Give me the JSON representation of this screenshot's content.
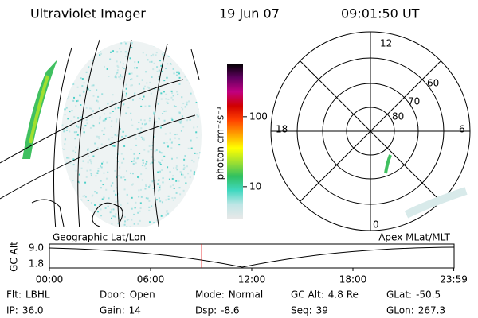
{
  "header": {
    "instrument": "Ultraviolet Imager",
    "date": "19 Jun 07",
    "time": "09:01:50 UT"
  },
  "colorbar": {
    "label": "photon cm⁻²s⁻¹",
    "log": true,
    "lim": [
      3.5,
      575
    ],
    "ticks": [
      100,
      10
    ],
    "colors": [
      "#e8e8e8",
      "#bfe6e6",
      "#40d8c0",
      "#30c060",
      "#a0e030",
      "#ffff00",
      "#ffa000",
      "#ff4000",
      "#d00000",
      "#c00080",
      "#600060",
      "#000000"
    ]
  },
  "polar": {
    "mlt_labels": [
      "12",
      "18",
      "6",
      "0"
    ],
    "lat_labels": [
      "60",
      "70",
      "80"
    ]
  },
  "timeline": {
    "left_label": "Geographic Lat/Lon",
    "right_label": "Apex MLat/MLT",
    "y_label": "GC Alt",
    "ylim": [
      1.8,
      9.0
    ],
    "yticks": [
      {
        "value": 9.0,
        "label": "9.0"
      },
      {
        "value": 1.8,
        "label": "1.8"
      }
    ],
    "xlim": [
      0,
      24
    ],
    "xticks": [
      {
        "value": 0,
        "label": "00:00"
      },
      {
        "value": 6,
        "label": "06:00"
      },
      {
        "value": 12,
        "label": "12:00"
      },
      {
        "value": 18,
        "label": "18:00"
      },
      {
        "value": 23.98,
        "label": "23:59"
      }
    ],
    "marker": 9.03,
    "marker_color": "#e00000"
  },
  "footer": [
    [
      {
        "label": "Flt:",
        "value": "LBHL"
      },
      {
        "label": "Door:",
        "value": "Open"
      },
      {
        "label": "Mode:",
        "value": "Normal"
      },
      {
        "label": "GC Alt:",
        "value": "4.8 Re"
      },
      {
        "label": "GLat:",
        "value": "-50.5"
      }
    ],
    [
      {
        "label": "IP:",
        "value": "36.0"
      },
      {
        "label": "Gain:",
        "value": "14"
      },
      {
        "label": "Dsp:",
        "value": "-8.6"
      },
      {
        "label": "Seq:",
        "value": "39"
      },
      {
        "label": "GLon:",
        "value": "267.3"
      }
    ]
  ]
}
